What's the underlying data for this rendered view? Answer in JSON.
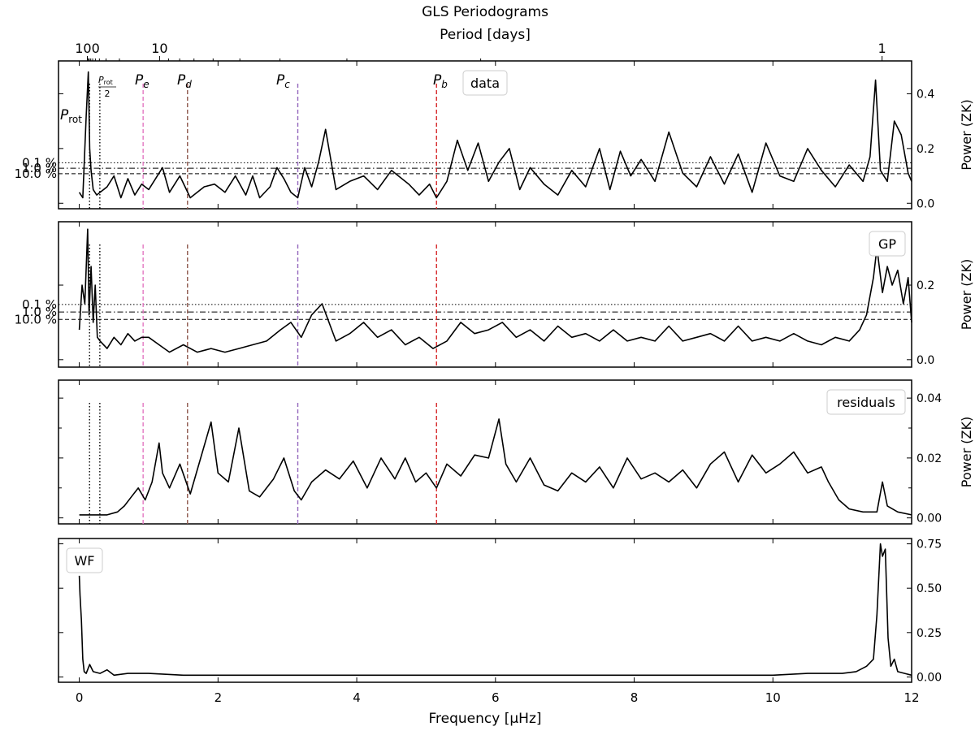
{
  "chart_data": {
    "type": "line",
    "title": "GLS Periodograms",
    "top_axis_label": "Period [days]",
    "top_ticks": [
      {
        "period": 100,
        "label": "100"
      },
      {
        "period": 10,
        "label": "10"
      },
      {
        "period": 1,
        "label": "1"
      }
    ],
    "xlabel": "Frequency [μHz]",
    "xlim": [
      -0.3,
      12.0
    ],
    "xticks": [
      0,
      2,
      4,
      6,
      8,
      10,
      12
    ],
    "xtick_labels": [
      "0",
      "2",
      "4",
      "6",
      "8",
      "10",
      "12"
    ],
    "vertical_markers": [
      {
        "freq": 0.148,
        "style": "dotted",
        "color": "#000000",
        "panels": [
          0,
          1,
          2
        ],
        "label": "P_rot"
      },
      {
        "freq": 0.296,
        "style": "dotted",
        "color": "#000000",
        "panels": [
          0,
          1,
          2
        ],
        "label": "P_rot/2"
      },
      {
        "freq": 0.92,
        "style": "dashed",
        "color": "#e377c2",
        "panels": [
          0,
          1,
          2
        ],
        "label": "P_e"
      },
      {
        "freq": 1.56,
        "style": "dashed",
        "color": "#8c564b",
        "panels": [
          0,
          1,
          2
        ],
        "label": "P_d"
      },
      {
        "freq": 3.15,
        "style": "dashed",
        "color": "#9467bd",
        "panels": [
          0,
          1,
          2
        ],
        "label": "P_c"
      },
      {
        "freq": 5.15,
        "style": "dashed",
        "color": "#d62728",
        "panels": [
          0,
          1,
          2
        ],
        "label": "P_b"
      }
    ],
    "marker_labels": {
      "rot_main": "P",
      "rot_sub": "rot",
      "half_num_main": "P",
      "half_num_sub": "rot",
      "half_den": "2",
      "e_main": "P",
      "e_sub": "e",
      "d_main": "P",
      "d_sub": "d",
      "c_main": "P",
      "c_sub": "c",
      "b_main": "P",
      "b_sub": "b"
    },
    "panels": [
      {
        "name": "data",
        "legend": "data",
        "ylabel": "Power (ZK)",
        "ylim": [
          -0.02,
          0.52
        ],
        "yticks": [
          0.0,
          0.2,
          0.4
        ],
        "ytick_labels": [
          "0.0",
          "0.2",
          "0.4"
        ],
        "fap_levels": [
          {
            "label": "0.1 %",
            "power": 0.148,
            "style": "dotted"
          },
          {
            "label": "1.0 %",
            "power": 0.128,
            "style": "dashdot"
          },
          {
            "label": "10.0 %",
            "power": 0.108,
            "style": "dashed"
          }
        ],
        "series": [
          {
            "x": [
              0.0,
              0.05,
              0.1,
              0.13,
              0.15,
              0.17,
              0.2,
              0.25,
              0.3,
              0.4,
              0.5,
              0.6,
              0.7,
              0.8,
              0.9,
              1.0,
              1.1,
              1.2,
              1.3,
              1.45,
              1.6,
              1.8,
              1.95,
              2.1,
              2.25,
              2.4,
              2.5,
              2.6,
              2.75,
              2.85,
              2.95,
              3.05,
              3.15,
              3.25,
              3.35,
              3.45,
              3.55,
              3.7,
              3.9,
              4.1,
              4.3,
              4.5,
              4.75,
              4.9,
              5.05,
              5.15,
              5.3,
              5.45,
              5.6,
              5.75,
              5.9,
              6.05,
              6.2,
              6.35,
              6.5,
              6.7,
              6.9,
              7.1,
              7.3,
              7.5,
              7.65,
              7.8,
              7.95,
              8.1,
              8.3,
              8.5,
              8.7,
              8.9,
              9.1,
              9.3,
              9.5,
              9.7,
              9.9,
              10.1,
              10.3,
              10.5,
              10.7,
              10.9,
              11.1,
              11.3,
              11.4,
              11.48,
              11.55,
              11.65,
              11.75,
              11.85,
              11.95,
              12.0
            ],
            "y": [
              0.04,
              0.02,
              0.32,
              0.48,
              0.2,
              0.12,
              0.05,
              0.03,
              0.04,
              0.06,
              0.1,
              0.02,
              0.09,
              0.03,
              0.07,
              0.05,
              0.09,
              0.13,
              0.04,
              0.1,
              0.02,
              0.06,
              0.07,
              0.04,
              0.1,
              0.03,
              0.1,
              0.02,
              0.06,
              0.13,
              0.09,
              0.04,
              0.02,
              0.13,
              0.06,
              0.15,
              0.27,
              0.05,
              0.08,
              0.1,
              0.05,
              0.12,
              0.07,
              0.03,
              0.07,
              0.02,
              0.08,
              0.23,
              0.12,
              0.22,
              0.08,
              0.15,
              0.2,
              0.05,
              0.13,
              0.07,
              0.03,
              0.12,
              0.06,
              0.2,
              0.05,
              0.19,
              0.1,
              0.16,
              0.08,
              0.26,
              0.11,
              0.06,
              0.17,
              0.07,
              0.18,
              0.04,
              0.22,
              0.1,
              0.08,
              0.2,
              0.12,
              0.06,
              0.14,
              0.08,
              0.17,
              0.45,
              0.12,
              0.08,
              0.3,
              0.25,
              0.11,
              0.08
            ]
          }
        ]
      },
      {
        "name": "GP",
        "legend": "GP",
        "ylabel": "Power (ZK)",
        "ylim": [
          -0.02,
          0.37
        ],
        "yticks": [
          0.0,
          0.2
        ],
        "ytick_labels": [
          "0.0",
          "0.2"
        ],
        "fap_levels": [
          {
            "label": "0.1 %",
            "power": 0.148,
            "style": "dotted"
          },
          {
            "label": "1.0 %",
            "power": 0.128,
            "style": "dashdot"
          },
          {
            "label": "10.0 %",
            "power": 0.108,
            "style": "dashed"
          }
        ],
        "series": [
          {
            "x": [
              0.0,
              0.04,
              0.08,
              0.12,
              0.14,
              0.17,
              0.2,
              0.23,
              0.26,
              0.3,
              0.4,
              0.5,
              0.6,
              0.7,
              0.8,
              0.9,
              1.0,
              1.15,
              1.3,
              1.5,
              1.7,
              1.9,
              2.1,
              2.3,
              2.5,
              2.7,
              2.9,
              3.05,
              3.2,
              3.35,
              3.5,
              3.7,
              3.9,
              4.1,
              4.3,
              4.5,
              4.7,
              4.9,
              5.1,
              5.3,
              5.5,
              5.7,
              5.9,
              6.1,
              6.3,
              6.5,
              6.7,
              6.9,
              7.1,
              7.3,
              7.5,
              7.7,
              7.9,
              8.1,
              8.3,
              8.5,
              8.7,
              8.9,
              9.1,
              9.3,
              9.5,
              9.7,
              9.9,
              10.1,
              10.3,
              10.5,
              10.7,
              10.9,
              11.1,
              11.25,
              11.35,
              11.45,
              11.5,
              11.58,
              11.65,
              11.72,
              11.8,
              11.88,
              11.95,
              12.0
            ],
            "y": [
              0.08,
              0.2,
              0.15,
              0.35,
              0.12,
              0.25,
              0.1,
              0.2,
              0.06,
              0.05,
              0.03,
              0.06,
              0.04,
              0.07,
              0.05,
              0.06,
              0.06,
              0.04,
              0.02,
              0.04,
              0.02,
              0.03,
              0.02,
              0.03,
              0.04,
              0.05,
              0.08,
              0.1,
              0.06,
              0.12,
              0.15,
              0.05,
              0.07,
              0.1,
              0.06,
              0.08,
              0.04,
              0.06,
              0.03,
              0.05,
              0.1,
              0.07,
              0.08,
              0.1,
              0.06,
              0.08,
              0.05,
              0.09,
              0.06,
              0.07,
              0.05,
              0.08,
              0.05,
              0.06,
              0.05,
              0.09,
              0.05,
              0.06,
              0.07,
              0.05,
              0.09,
              0.05,
              0.06,
              0.05,
              0.07,
              0.05,
              0.04,
              0.06,
              0.05,
              0.08,
              0.12,
              0.22,
              0.3,
              0.18,
              0.25,
              0.2,
              0.24,
              0.15,
              0.22,
              0.1
            ]
          }
        ]
      },
      {
        "name": "residuals",
        "legend": "residuals",
        "ylabel": "Power (ZK)",
        "ylim": [
          -0.002,
          0.046
        ],
        "yticks": [
          0.0,
          0.02,
          0.04
        ],
        "ytick_labels": [
          "0.00",
          "0.02",
          "0.04"
        ],
        "minor_yticks": [
          0.01,
          0.03
        ],
        "series": [
          {
            "x": [
              0.0,
              0.2,
              0.4,
              0.55,
              0.65,
              0.75,
              0.85,
              0.95,
              1.05,
              1.15,
              1.2,
              1.3,
              1.45,
              1.6,
              1.75,
              1.9,
              2.0,
              2.15,
              2.3,
              2.45,
              2.6,
              2.8,
              2.95,
              3.1,
              3.2,
              3.35,
              3.55,
              3.75,
              3.95,
              4.15,
              4.35,
              4.55,
              4.7,
              4.85,
              5.0,
              5.15,
              5.3,
              5.5,
              5.7,
              5.9,
              6.05,
              6.15,
              6.3,
              6.5,
              6.7,
              6.9,
              7.1,
              7.3,
              7.5,
              7.7,
              7.9,
              8.1,
              8.3,
              8.5,
              8.7,
              8.9,
              9.1,
              9.3,
              9.5,
              9.7,
              9.9,
              10.1,
              10.3,
              10.5,
              10.7,
              10.8,
              10.95,
              11.1,
              11.3,
              11.5,
              11.58,
              11.65,
              11.8,
              12.0
            ],
            "y": [
              0.001,
              0.001,
              0.001,
              0.002,
              0.004,
              0.007,
              0.01,
              0.006,
              0.012,
              0.025,
              0.015,
              0.01,
              0.018,
              0.008,
              0.02,
              0.032,
              0.015,
              0.012,
              0.03,
              0.009,
              0.007,
              0.013,
              0.02,
              0.009,
              0.006,
              0.012,
              0.016,
              0.013,
              0.019,
              0.01,
              0.02,
              0.013,
              0.02,
              0.012,
              0.015,
              0.01,
              0.018,
              0.014,
              0.021,
              0.02,
              0.033,
              0.018,
              0.012,
              0.02,
              0.011,
              0.009,
              0.015,
              0.012,
              0.017,
              0.01,
              0.02,
              0.013,
              0.015,
              0.012,
              0.016,
              0.01,
              0.018,
              0.022,
              0.012,
              0.021,
              0.015,
              0.018,
              0.022,
              0.015,
              0.017,
              0.012,
              0.006,
              0.003,
              0.002,
              0.002,
              0.012,
              0.004,
              0.002,
              0.001
            ]
          }
        ]
      },
      {
        "name": "WF",
        "legend": "WF",
        "ylabel": "",
        "ylim": [
          -0.03,
          0.78
        ],
        "yticks": [
          0.0,
          0.25,
          0.5,
          0.75
        ],
        "ytick_labels": [
          "0.00",
          "0.25",
          "0.50",
          "0.75"
        ],
        "series": [
          {
            "x": [
              0.0,
              0.01,
              0.03,
              0.05,
              0.07,
              0.1,
              0.15,
              0.2,
              0.3,
              0.4,
              0.5,
              0.7,
              1.0,
              1.5,
              2.0,
              3.0,
              4.0,
              5.0,
              6.0,
              7.0,
              8.0,
              9.0,
              10.0,
              10.5,
              11.0,
              11.2,
              11.35,
              11.45,
              11.5,
              11.55,
              11.58,
              11.62,
              11.66,
              11.7,
              11.75,
              11.8,
              11.9,
              12.0
            ],
            "y": [
              0.57,
              0.46,
              0.32,
              0.1,
              0.03,
              0.02,
              0.07,
              0.03,
              0.02,
              0.04,
              0.01,
              0.02,
              0.02,
              0.01,
              0.01,
              0.01,
              0.01,
              0.01,
              0.01,
              0.01,
              0.01,
              0.01,
              0.01,
              0.02,
              0.02,
              0.03,
              0.06,
              0.1,
              0.35,
              0.75,
              0.68,
              0.72,
              0.22,
              0.06,
              0.1,
              0.03,
              0.02,
              0.01
            ]
          }
        ]
      }
    ]
  }
}
